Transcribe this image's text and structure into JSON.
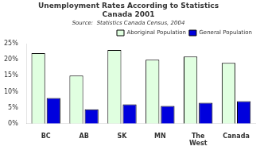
{
  "chart_data": {
    "type": "bar",
    "title": "Unemployment Rates According to Statistics\nCanada 2001",
    "subtitle": "Source:  Statistics Canada Census, 2004",
    "categories": [
      "BC",
      "AB",
      "SK",
      "MN",
      "The\nWest",
      "Canada"
    ],
    "series": [
      {
        "name": "Aboriginal Population",
        "color": "#e0ffe0",
        "values": [
          22,
          15,
          23,
          20,
          21,
          19
        ]
      },
      {
        "name": "General Population",
        "color": "#0000dd",
        "values": [
          8,
          4.5,
          6,
          5.5,
          6.5,
          7
        ]
      }
    ],
    "ylim": [
      0,
      25
    ],
    "yticks": [
      {
        "value": 0,
        "label": "0%"
      },
      {
        "value": 5,
        "label": "5%"
      },
      {
        "value": 10,
        "label": "10%"
      },
      {
        "value": 15,
        "label": "15%"
      },
      {
        "value": 20,
        "label": "20%"
      },
      {
        "value": 25,
        "label": "25%"
      }
    ],
    "grid": false,
    "legend": "upper right"
  }
}
